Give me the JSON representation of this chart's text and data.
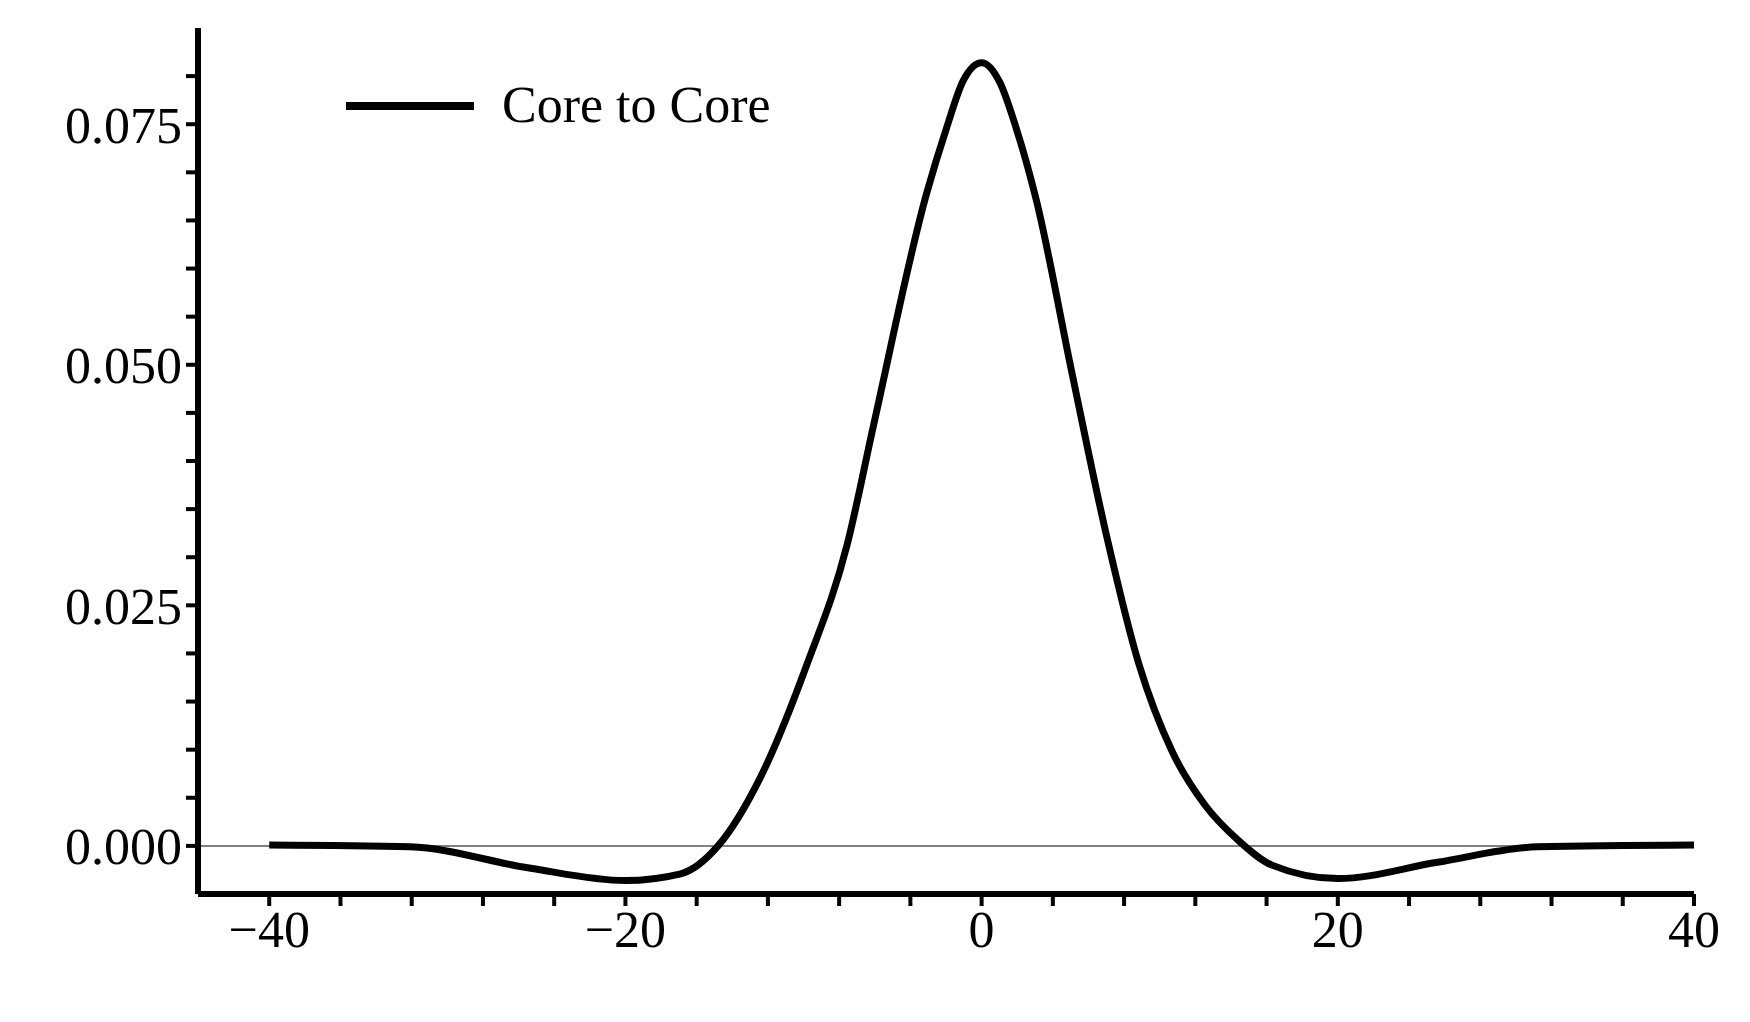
{
  "chart_data": {
    "type": "line",
    "x": [
      -40,
      -32.1,
      -25.4,
      -20,
      -16.9,
      -14.8,
      -12.4,
      -9.8,
      -7.55,
      -6.07,
      -3.09,
      -1.97,
      -1.04,
      0,
      1.01,
      1.94,
      3.06,
      5.1,
      6.97,
      8.83,
      10.7,
      12.56,
      14.4,
      16.3,
      20,
      25.6,
      31.2,
      40
    ],
    "series": [
      {
        "name": "Core to Core",
        "color": "#000000",
        "values": [
          0.0001,
          -0.0001,
          -0.0023,
          -0.0036,
          -0.0029,
          0,
          0.0072,
          0.0189,
          0.0313,
          0.0437,
          0.0678,
          0.0746,
          0.0795,
          0.0814,
          0.0794,
          0.0746,
          0.0672,
          0.0489,
          0.0326,
          0.0189,
          0.0098,
          0.0042,
          0.0006,
          -0.002,
          -0.0034,
          -0.0017,
          -0.0001,
          0.0001
        ]
      }
    ],
    "xlim": [
      -44,
      40
    ],
    "xticks": [
      {
        "value": -40,
        "label": "−40"
      },
      {
        "value": -36,
        "label": null
      },
      {
        "value": -32,
        "label": null
      },
      {
        "value": -28,
        "label": null
      },
      {
        "value": -24,
        "label": null
      },
      {
        "value": -20,
        "label": "−20"
      },
      {
        "value": -16,
        "label": null
      },
      {
        "value": -12,
        "label": null
      },
      {
        "value": -8,
        "label": null
      },
      {
        "value": -4,
        "label": null
      },
      {
        "value": 0,
        "label": "0"
      },
      {
        "value": 4,
        "label": null
      },
      {
        "value": 8,
        "label": null
      },
      {
        "value": 12,
        "label": null
      },
      {
        "value": 16,
        "label": null
      },
      {
        "value": 20,
        "label": "20"
      },
      {
        "value": 24,
        "label": null
      },
      {
        "value": 28,
        "label": null
      },
      {
        "value": 32,
        "label": null
      },
      {
        "value": 36,
        "label": null
      },
      {
        "value": 40,
        "label": "40"
      }
    ],
    "ylim": [
      -0.005,
      0.085
    ],
    "yticks": [
      {
        "value": 0,
        "label": "0.000"
      },
      {
        "value": 0.005,
        "label": null
      },
      {
        "value": 0.01,
        "label": null
      },
      {
        "value": 0.015,
        "label": null
      },
      {
        "value": 0.02,
        "label": null
      },
      {
        "value": 0.025,
        "label": "0.025"
      },
      {
        "value": 0.03,
        "label": null
      },
      {
        "value": 0.035,
        "label": null
      },
      {
        "value": 0.04,
        "label": null
      },
      {
        "value": 0.045,
        "label": null
      },
      {
        "value": 0.05,
        "label": "0.050"
      },
      {
        "value": 0.055,
        "label": null
      },
      {
        "value": 0.06,
        "label": null
      },
      {
        "value": 0.065,
        "label": null
      },
      {
        "value": 0.07,
        "label": null
      },
      {
        "value": 0.075,
        "label": "0.075"
      },
      {
        "value": 0.08,
        "label": null
      }
    ],
    "ref_lines": [
      {
        "axis": "y",
        "value": 0,
        "label": null,
        "color": "#808080"
      }
    ],
    "legend": "top left",
    "grid": false,
    "marker": "none",
    "line_style": "solid"
  }
}
